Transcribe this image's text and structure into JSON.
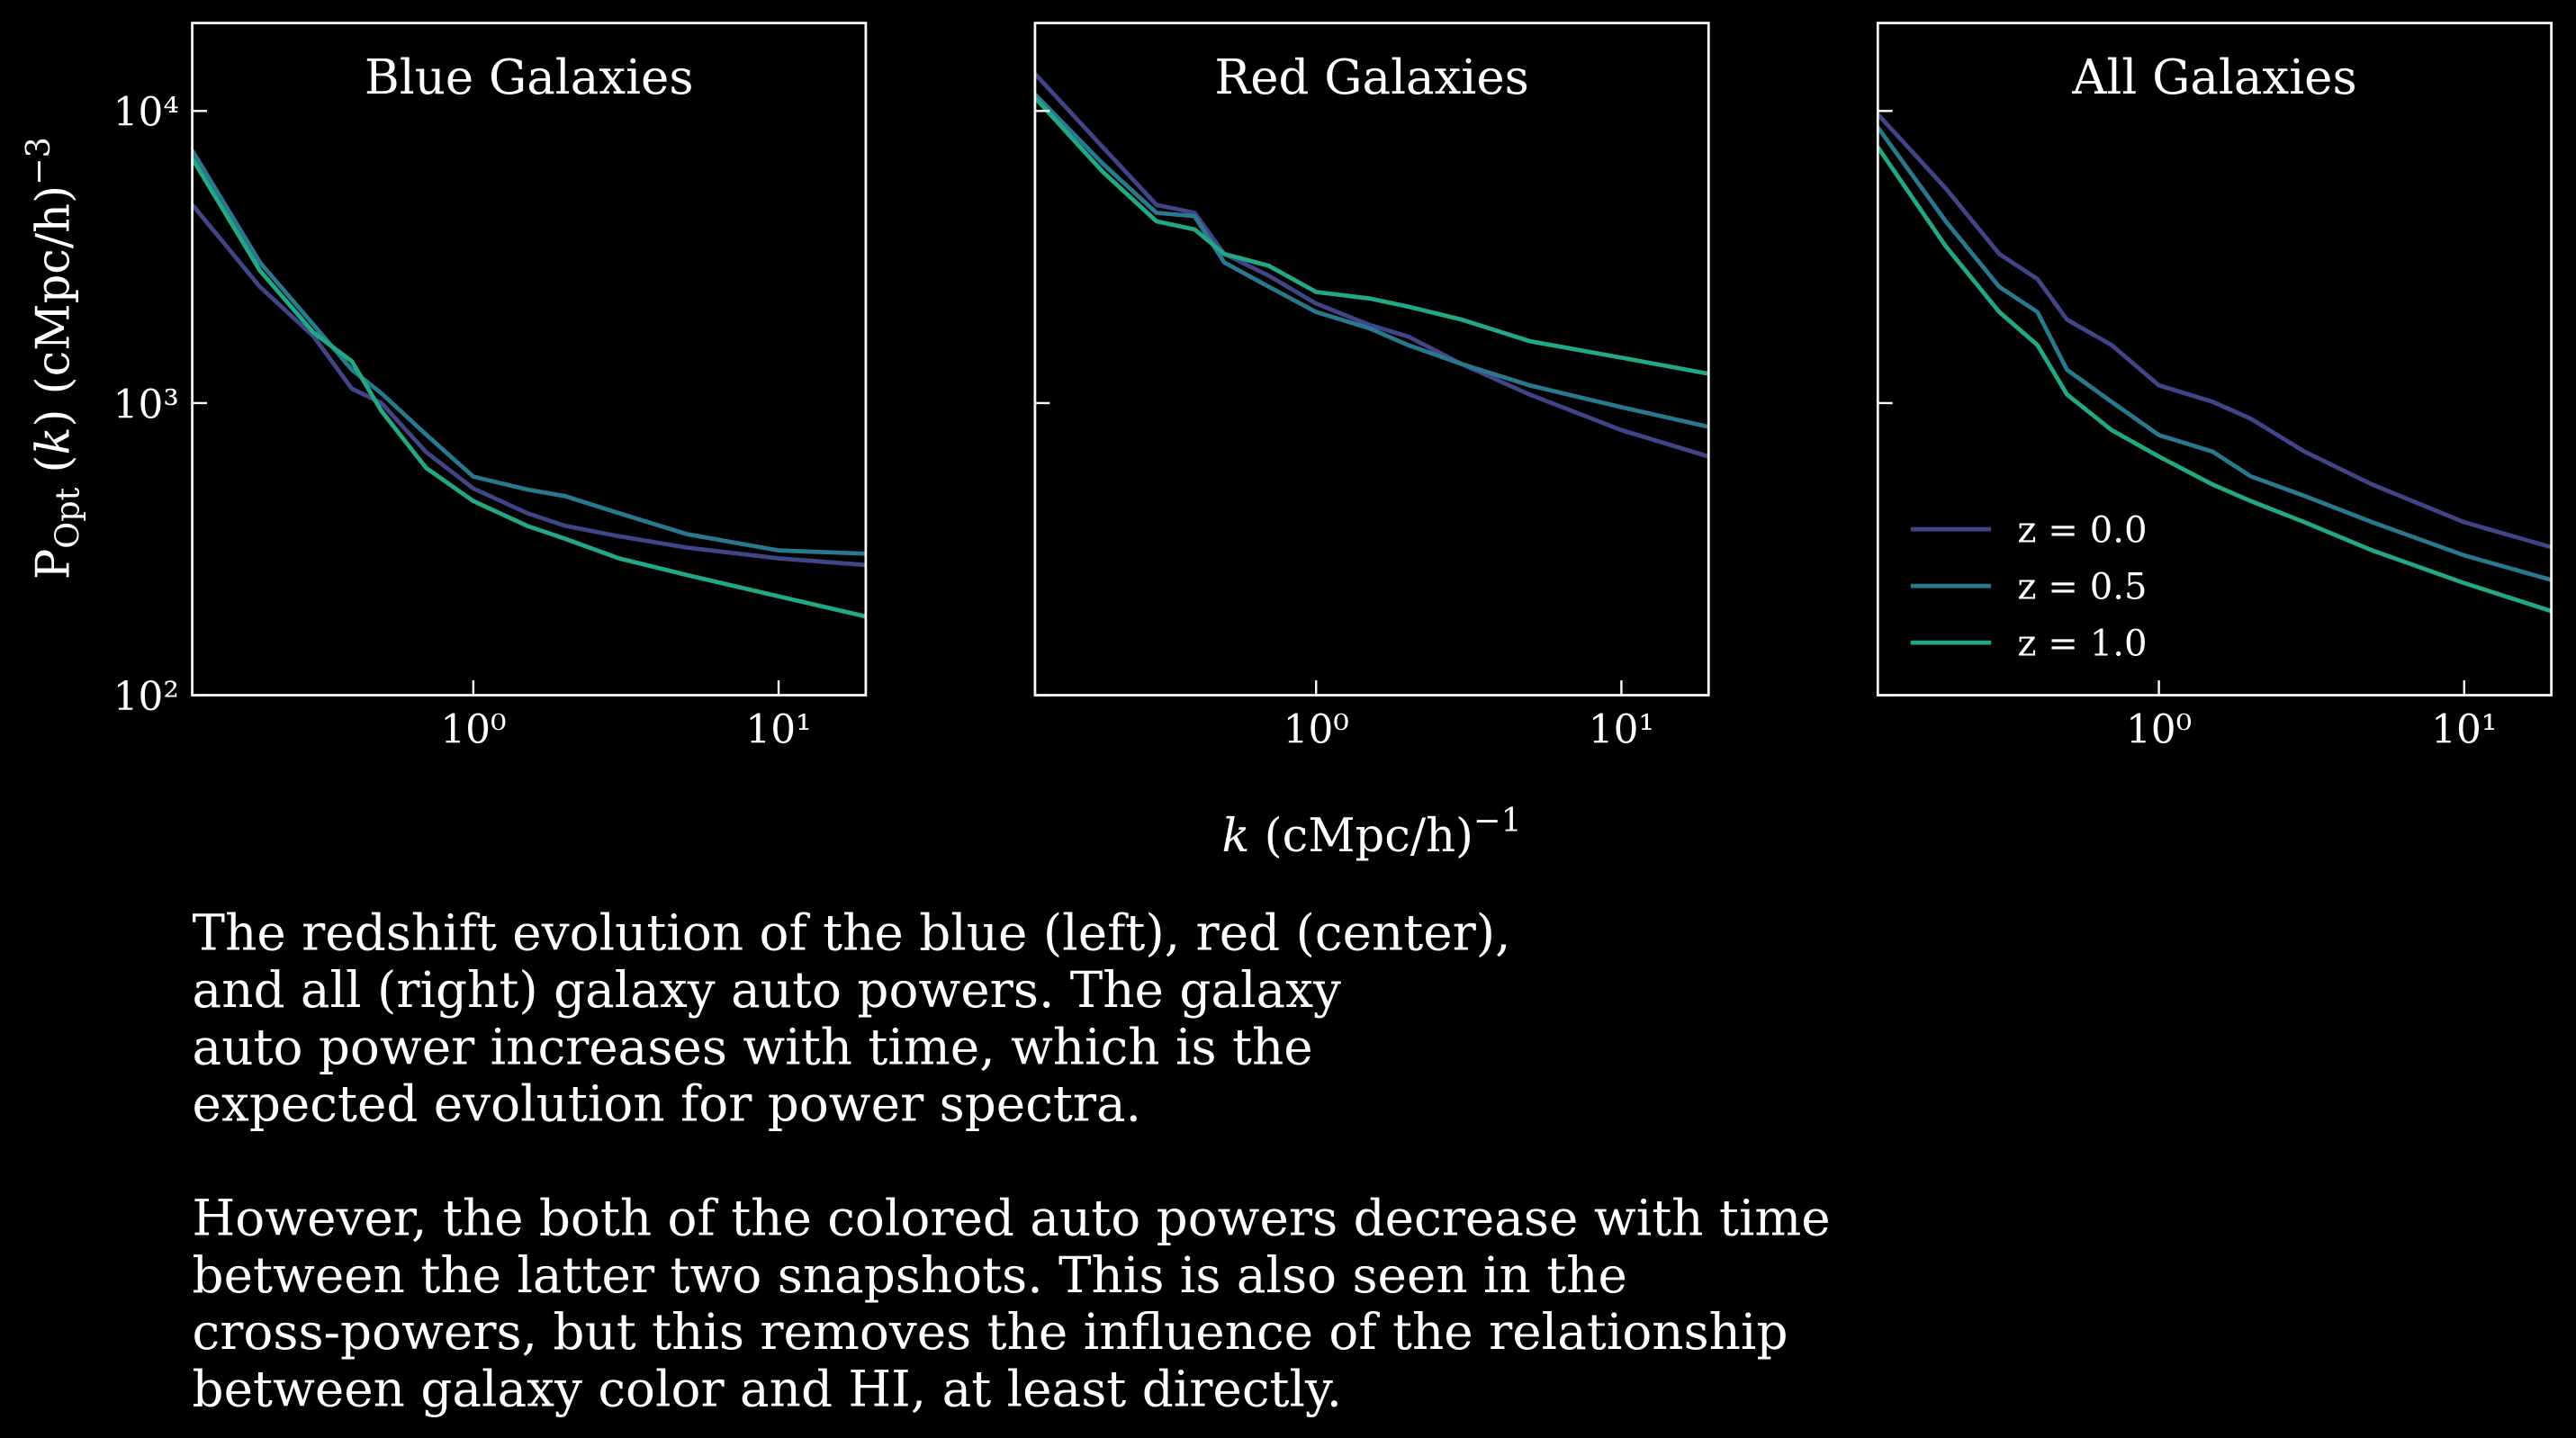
{
  "chart_data": [
    {
      "type": "line",
      "title": "Blue Galaxies",
      "log_x": true,
      "log_y": true,
      "ylabel": [
        "P",
        "Opt",
        " (",
        "k",
        ") (cMpc/h)",
        "−3"
      ],
      "x": [
        0.12,
        0.2,
        0.3,
        0.4,
        0.5,
        0.7,
        1,
        1.5,
        2,
        3,
        5,
        10,
        19.3
      ],
      "series": [
        {
          "name": "z = 0.0",
          "color": "#414487",
          "values": [
            4780,
            2500,
            1690,
            1120,
            1000,
            680,
            510,
            420,
            380,
            350,
            320,
            294,
            279
          ]
        },
        {
          "name": "z = 0.5",
          "color": "#2a788e",
          "values": [
            7330,
            3030,
            1850,
            1300,
            1080,
            780,
            560,
            506,
            480,
            420,
            356,
            313,
            305
          ]
        },
        {
          "name": "z = 1.0",
          "color": "#22a884",
          "values": [
            6870,
            2840,
            1740,
            1390,
            940,
            600,
            462,
            380,
            343,
            294,
            258,
            218,
            186
          ]
        }
      ],
      "xlim": [
        0.12,
        19.3
      ],
      "ylim": [
        100,
        20000
      ],
      "xticks": [
        {
          "value": 1,
          "label": "10⁰"
        },
        {
          "value": 10,
          "label": "10¹"
        }
      ],
      "yticks": [
        {
          "value": 100,
          "label": "10²"
        },
        {
          "value": 1000,
          "label": "10³"
        },
        {
          "value": 10000,
          "label": "10⁴"
        }
      ]
    },
    {
      "type": "line",
      "title": "Red Galaxies",
      "log_x": true,
      "log_y": true,
      "xlabel": [
        "k",
        " (cMpc/h)",
        "−1"
      ],
      "x": [
        0.12,
        0.2,
        0.3,
        0.4,
        0.5,
        0.7,
        1,
        1.5,
        2,
        3,
        5,
        10,
        19.3
      ],
      "series": [
        {
          "name": "z = 0.0",
          "color": "#414487",
          "values": [
            13400,
            7520,
            4770,
            4480,
            3240,
            2730,
            2190,
            1850,
            1690,
            1360,
            1070,
            808,
            656
          ]
        },
        {
          "name": "z = 0.5",
          "color": "#2a788e",
          "values": [
            11400,
            6600,
            4480,
            4360,
            3030,
            2500,
            2050,
            1800,
            1580,
            1360,
            1150,
            968,
            829
          ]
        },
        {
          "name": "z = 1.0",
          "color": "#22a884",
          "values": [
            11100,
            6190,
            4190,
            3930,
            3240,
            2950,
            2400,
            2280,
            2140,
            1930,
            1630,
            1430,
            1260
          ]
        }
      ],
      "xlim": [
        0.12,
        19.3
      ],
      "ylim": [
        100,
        20000
      ],
      "xticks": [
        {
          "value": 1,
          "label": "10⁰"
        },
        {
          "value": 10,
          "label": "10¹"
        }
      ],
      "yticks": [
        100,
        1000,
        10000
      ],
      "ytick_labels": false
    },
    {
      "type": "line",
      "title": "All Galaxies",
      "log_x": true,
      "log_y": true,
      "legend": "lower left",
      "x": [
        0.12,
        0.2,
        0.3,
        0.4,
        0.5,
        0.7,
        1,
        1.5,
        2,
        3,
        5,
        10,
        19.3
      ],
      "series": [
        {
          "name": "z = 0.0",
          "color": "#414487",
          "values": [
            9750,
            5440,
            3240,
            2660,
            1930,
            1580,
            1150,
            1010,
            884,
            682,
            526,
            391,
            321
          ]
        },
        {
          "name": "z = 0.5",
          "color": "#2a788e",
          "values": [
            8790,
            4200,
            2500,
            2050,
            1300,
            1010,
            777,
            682,
            561,
            481,
            391,
            301,
            248
          ]
        },
        {
          "name": "z = 1.0",
          "color": "#22a884",
          "values": [
            7520,
            3450,
            2050,
            1580,
            1070,
            808,
            656,
            526,
            462,
            391,
            313,
            242,
            194
          ]
        }
      ],
      "xlim": [
        0.12,
        19.3
      ],
      "ylim": [
        100,
        20000
      ],
      "xticks": [
        {
          "value": 1,
          "label": "10⁰"
        },
        {
          "value": 10,
          "label": "10¹"
        }
      ],
      "yticks": [
        100,
        1000,
        10000
      ],
      "ytick_labels": false
    }
  ],
  "caption": [
    [
      "The redshift evolution of the blue (left), red (center),",
      "and all (right) galaxy auto powers. The galaxy",
      "auto power increases with time, which is the",
      "expected evolution for power spectra."
    ],
    [
      "However, the both of the colored auto powers decrease with time",
      "between the latter two snapshots. This is also seen in the",
      "cross-powers, but this removes the influence of the relationship",
      "between galaxy color and HI, at least directly."
    ]
  ]
}
